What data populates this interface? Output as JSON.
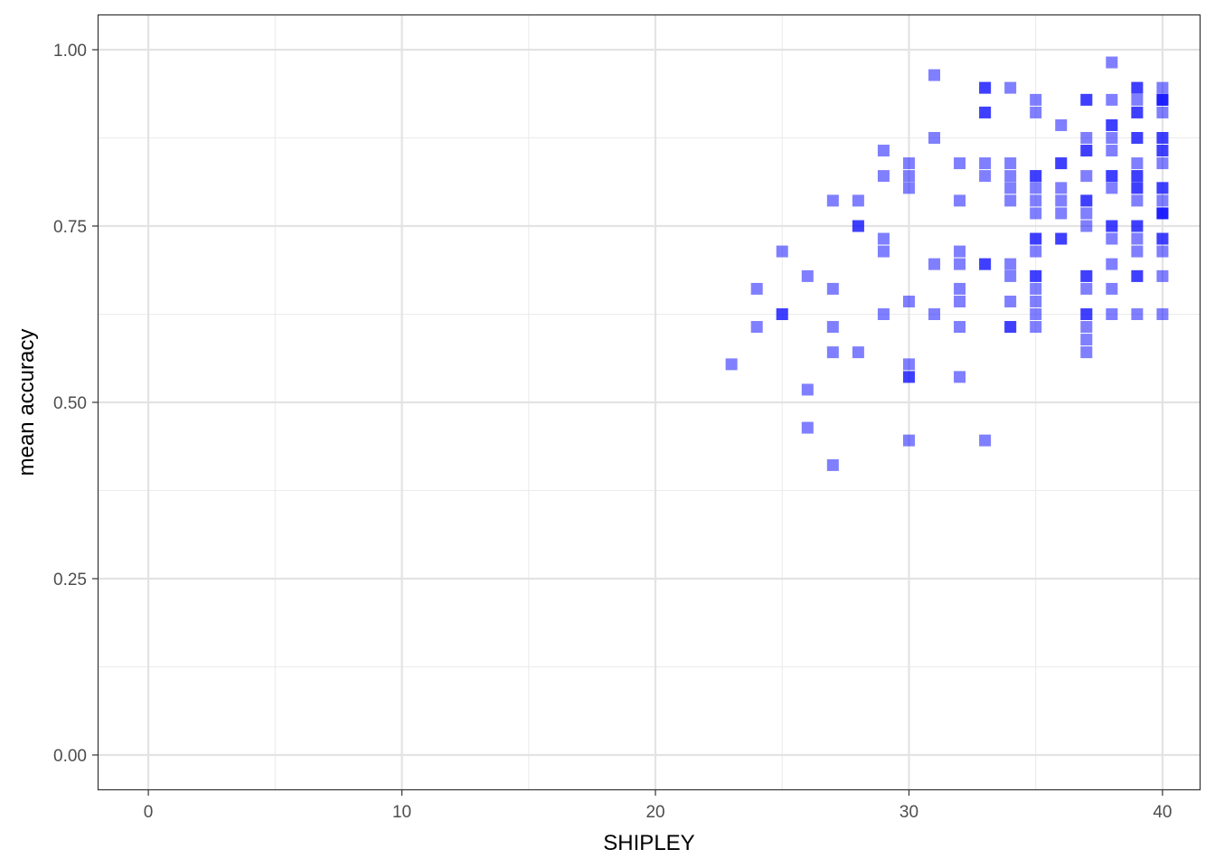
{
  "chart_data": {
    "type": "scatter",
    "xlabel": "SHIPLEY",
    "ylabel": "mean accuracy",
    "xlim": [
      -2,
      41.5
    ],
    "ylim": [
      -0.05,
      1.05
    ],
    "x_ticks": [
      0,
      10,
      20,
      30,
      40
    ],
    "y_ticks": [
      0.0,
      0.25,
      0.5,
      0.75,
      1.0
    ],
    "x_tick_labels": [
      "0",
      "10",
      "20",
      "30",
      "40"
    ],
    "y_tick_labels": [
      "0.00",
      "0.25",
      "0.50",
      "0.75",
      "1.00"
    ],
    "x_minor_ticks": [
      5,
      15,
      25,
      35
    ],
    "y_minor_ticks": [
      0.125,
      0.375,
      0.625,
      0.875
    ],
    "grid": true,
    "marker": "square",
    "point_color": "#0000ff",
    "point_opacity": 0.5,
    "points": [
      [
        23,
        0.554
      ],
      [
        24,
        0.661
      ],
      [
        24,
        0.607
      ],
      [
        25,
        0.714
      ],
      [
        25,
        0.625
      ],
      [
        25,
        0.625
      ],
      [
        26,
        0.679
      ],
      [
        26,
        0.518
      ],
      [
        26,
        0.464
      ],
      [
        27,
        0.786
      ],
      [
        27,
        0.661
      ],
      [
        27,
        0.607
      ],
      [
        27,
        0.571
      ],
      [
        27,
        0.411
      ],
      [
        28,
        0.786
      ],
      [
        28,
        0.75
      ],
      [
        28,
        0.75
      ],
      [
        28,
        0.571
      ],
      [
        29,
        0.857
      ],
      [
        29,
        0.821
      ],
      [
        29,
        0.732
      ],
      [
        29,
        0.714
      ],
      [
        29,
        0.625
      ],
      [
        30,
        0.839
      ],
      [
        30,
        0.821
      ],
      [
        30,
        0.804
      ],
      [
        30,
        0.643
      ],
      [
        30,
        0.554
      ],
      [
        30,
        0.536
      ],
      [
        30,
        0.536
      ],
      [
        30,
        0.446
      ],
      [
        31,
        0.964
      ],
      [
        31,
        0.875
      ],
      [
        31,
        0.696
      ],
      [
        31,
        0.625
      ],
      [
        32,
        0.839
      ],
      [
        32,
        0.786
      ],
      [
        32,
        0.714
      ],
      [
        32,
        0.696
      ],
      [
        32,
        0.661
      ],
      [
        32,
        0.643
      ],
      [
        32,
        0.607
      ],
      [
        32,
        0.536
      ],
      [
        33,
        0.946
      ],
      [
        33,
        0.946
      ],
      [
        33,
        0.911
      ],
      [
        33,
        0.911
      ],
      [
        33,
        0.839
      ],
      [
        33,
        0.821
      ],
      [
        33,
        0.696
      ],
      [
        33,
        0.696
      ],
      [
        33,
        0.446
      ],
      [
        34,
        0.946
      ],
      [
        34,
        0.839
      ],
      [
        34,
        0.821
      ],
      [
        34,
        0.804
      ],
      [
        34,
        0.786
      ],
      [
        34,
        0.696
      ],
      [
        34,
        0.679
      ],
      [
        34,
        0.643
      ],
      [
        34,
        0.607
      ],
      [
        34,
        0.607
      ],
      [
        35,
        0.929
      ],
      [
        35,
        0.911
      ],
      [
        35,
        0.821
      ],
      [
        35,
        0.821
      ],
      [
        35,
        0.804
      ],
      [
        35,
        0.786
      ],
      [
        35,
        0.768
      ],
      [
        35,
        0.732
      ],
      [
        35,
        0.732
      ],
      [
        35,
        0.714
      ],
      [
        35,
        0.679
      ],
      [
        35,
        0.679
      ],
      [
        35,
        0.661
      ],
      [
        35,
        0.643
      ],
      [
        35,
        0.625
      ],
      [
        35,
        0.607
      ],
      [
        36,
        0.893
      ],
      [
        36,
        0.839
      ],
      [
        36,
        0.839
      ],
      [
        36,
        0.804
      ],
      [
        36,
        0.786
      ],
      [
        36,
        0.768
      ],
      [
        36,
        0.732
      ],
      [
        36,
        0.732
      ],
      [
        37,
        0.929
      ],
      [
        37,
        0.929
      ],
      [
        37,
        0.875
      ],
      [
        37,
        0.857
      ],
      [
        37,
        0.857
      ],
      [
        37,
        0.821
      ],
      [
        37,
        0.786
      ],
      [
        37,
        0.786
      ],
      [
        37,
        0.768
      ],
      [
        37,
        0.75
      ],
      [
        37,
        0.679
      ],
      [
        37,
        0.679
      ],
      [
        37,
        0.661
      ],
      [
        37,
        0.625
      ],
      [
        37,
        0.625
      ],
      [
        37,
        0.607
      ],
      [
        37,
        0.589
      ],
      [
        37,
        0.571
      ],
      [
        38,
        0.982
      ],
      [
        38,
        0.929
      ],
      [
        38,
        0.893
      ],
      [
        38,
        0.893
      ],
      [
        38,
        0.875
      ],
      [
        38,
        0.857
      ],
      [
        38,
        0.821
      ],
      [
        38,
        0.821
      ],
      [
        38,
        0.804
      ],
      [
        38,
        0.75
      ],
      [
        38,
        0.75
      ],
      [
        38,
        0.732
      ],
      [
        38,
        0.696
      ],
      [
        38,
        0.661
      ],
      [
        38,
        0.625
      ],
      [
        39,
        0.946
      ],
      [
        39,
        0.946
      ],
      [
        39,
        0.929
      ],
      [
        39,
        0.911
      ],
      [
        39,
        0.911
      ],
      [
        39,
        0.875
      ],
      [
        39,
        0.875
      ],
      [
        39,
        0.839
      ],
      [
        39,
        0.821
      ],
      [
        39,
        0.821
      ],
      [
        39,
        0.804
      ],
      [
        39,
        0.804
      ],
      [
        39,
        0.786
      ],
      [
        39,
        0.75
      ],
      [
        39,
        0.75
      ],
      [
        39,
        0.732
      ],
      [
        39,
        0.714
      ],
      [
        39,
        0.679
      ],
      [
        39,
        0.679
      ],
      [
        39,
        0.625
      ],
      [
        40,
        0.946
      ],
      [
        40,
        0.929
      ],
      [
        40,
        0.929
      ],
      [
        40,
        0.929
      ],
      [
        40,
        0.911
      ],
      [
        40,
        0.875
      ],
      [
        40,
        0.875
      ],
      [
        40,
        0.857
      ],
      [
        40,
        0.857
      ],
      [
        40,
        0.839
      ],
      [
        40,
        0.804
      ],
      [
        40,
        0.804
      ],
      [
        40,
        0.786
      ],
      [
        40,
        0.768
      ],
      [
        40,
        0.768
      ],
      [
        40,
        0.768
      ],
      [
        40,
        0.732
      ],
      [
        40,
        0.732
      ],
      [
        40,
        0.714
      ],
      [
        40,
        0.679
      ],
      [
        40,
        0.625
      ]
    ]
  }
}
